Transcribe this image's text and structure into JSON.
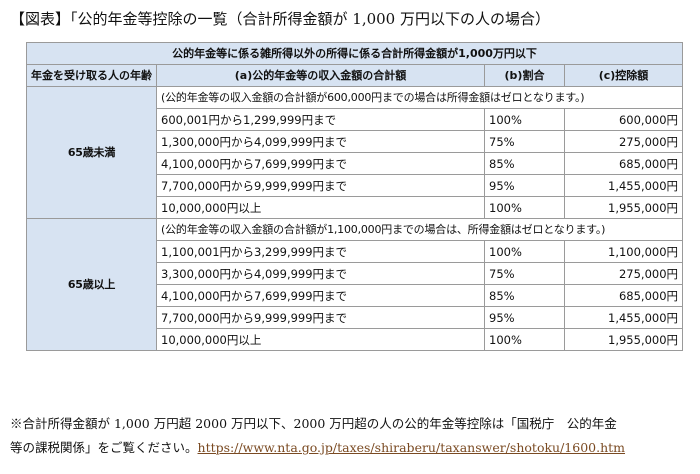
{
  "title": "【図表】「公的年金等控除の一覧（合計所得金額が 1,000 万円以下の人の場合）",
  "table": {
    "caption": "公的年金等に係る雑所得以外の所得に係る合計所得金額が1,000万円以下",
    "headers": [
      "年金を受け取る人の年齢",
      "(a)公的年金等の収入金額の合計額",
      "(b)割合",
      "(c)控除額"
    ],
    "groups": [
      {
        "age": "65歳未満",
        "note": "(公的年金等の収入金額の合計額が600,000円までの場合は所得金額はゼロとなります。)",
        "rows": [
          {
            "range": "600,001円から1,299,999円まで",
            "rate": "100%",
            "deduction": "600,000円"
          },
          {
            "range": "1,300,000円から4,099,999円まで",
            "rate": "75%",
            "deduction": "275,000円"
          },
          {
            "range": "4,100,000円から7,699,999円まで",
            "rate": "85%",
            "deduction": "685,000円"
          },
          {
            "range": "7,700,000円から9,999,999円まで",
            "rate": "95%",
            "deduction": "1,455,000円"
          },
          {
            "range": "10,000,000円以上",
            "rate": "100%",
            "deduction": "1,955,000円"
          }
        ]
      },
      {
        "age": "65歳以上",
        "note": "(公的年金等の収入金額の合計額が1,100,000円までの場合は、所得金額はゼロとなります。)",
        "rows": [
          {
            "range": "1,100,001円から3,299,999円まで",
            "rate": "100%",
            "deduction": "1,100,000円"
          },
          {
            "range": "3,300,000円から4,099,999円まで",
            "rate": "75%",
            "deduction": "275,000円"
          },
          {
            "range": "4,100,000円から7,699,999円まで",
            "rate": "85%",
            "deduction": "685,000円"
          },
          {
            "range": "7,700,000円から9,999,999円まで",
            "rate": "95%",
            "deduction": "1,455,000円"
          },
          {
            "range": "10,000,000円以上",
            "rate": "100%",
            "deduction": "1,955,000円"
          }
        ]
      }
    ]
  },
  "footnote": {
    "line1": "※合計所得金額が 1,000 万円超 2000 万円以下、2000 万円超の人の公的年金等控除は「国税庁　公的年金",
    "line2": "等の課税関係」をご覧ください。",
    "link": "https://www.nta.go.jp/taxes/shiraberu/taxanswer/shotoku/1600.htm",
    "link_color": "#7a4a22"
  }
}
